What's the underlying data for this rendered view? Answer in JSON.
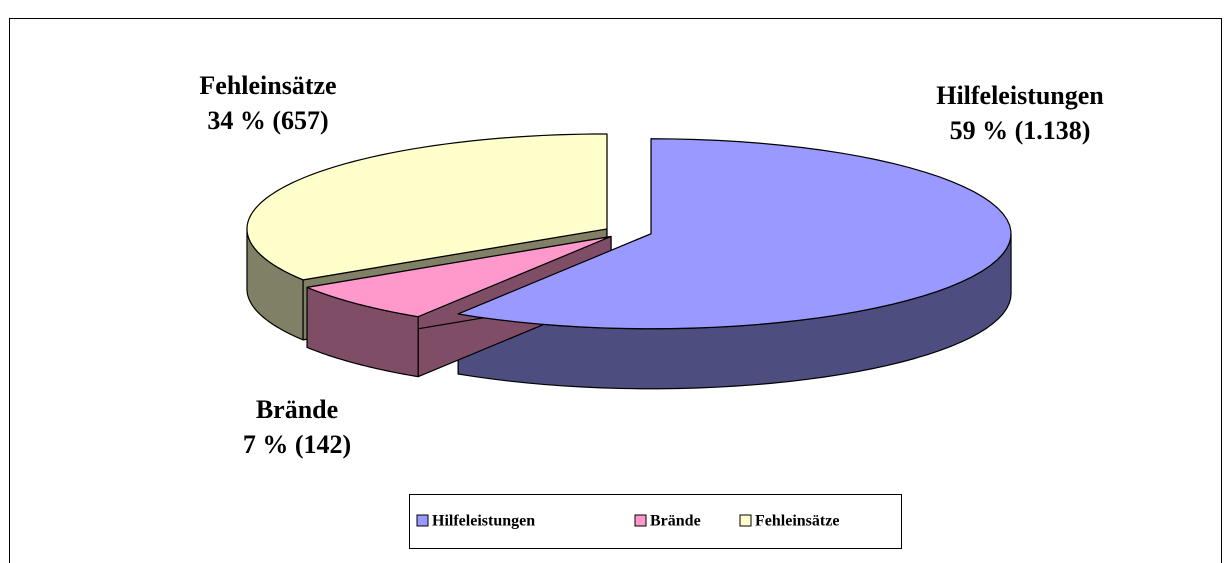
{
  "chart_data": {
    "type": "pie",
    "categories": [
      "Hilfeleistungen",
      "Brände",
      "Fehleinsätze"
    ],
    "values": [
      59,
      7,
      34
    ],
    "value_labels": [
      "59 % (1.138)",
      "7 % (142)",
      "34 % (657)"
    ],
    "colors": [
      "#9999ff",
      "#ff99cc",
      "#ffffcc"
    ],
    "legend": "bottom"
  }
}
